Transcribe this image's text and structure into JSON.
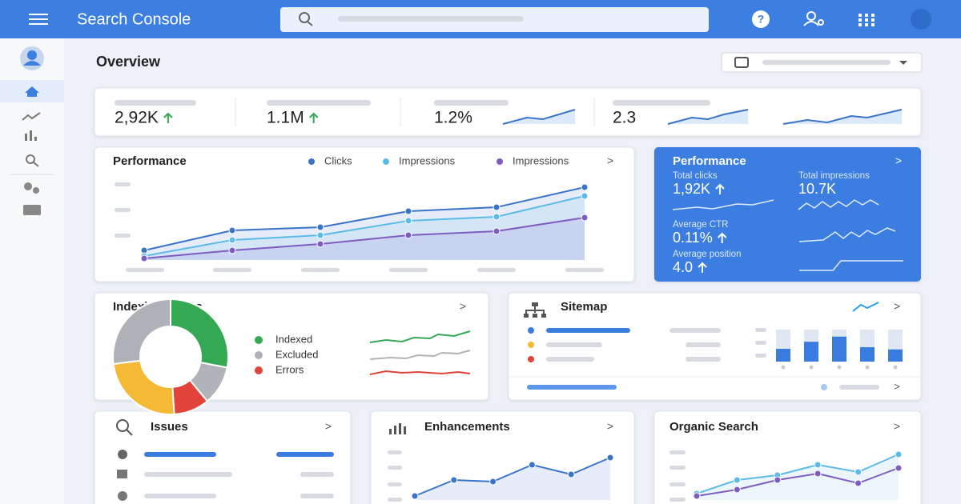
{
  "header": {
    "title": "Search Console"
  },
  "overview": {
    "title": "Overview",
    "metrics": [
      "2,92K",
      "1.1M",
      "1.2%",
      "2.3"
    ]
  },
  "performance": {
    "title": "Performance",
    "chart": {
      "type": "line",
      "ylim": [
        0,
        100
      ],
      "series": [
        {
          "name": "Clicks",
          "color": "#3a74c9",
          "values": [
            12,
            37,
            41,
            61,
            66,
            91
          ]
        },
        {
          "name": "Impressions",
          "color": "#5bbbe8",
          "values": [
            5,
            25,
            31,
            49,
            54,
            80
          ]
        },
        {
          "name": "Impressions",
          "color": "#7e5cc0",
          "values": [
            2,
            12,
            20,
            31,
            36,
            53
          ]
        }
      ]
    }
  },
  "summary": {
    "title": "Performance",
    "items": [
      {
        "label": "Total clicks",
        "value": "1,92K"
      },
      {
        "label": "Total impressions",
        "value": "10.7K"
      },
      {
        "label": "Average CTR",
        "value": "0.11%"
      },
      {
        "label": "Average position",
        "value": "4.0"
      }
    ]
  },
  "indexing": {
    "title": "Indexing Status",
    "chart": {
      "type": "pie",
      "segments": [
        {
          "color": "#34a853",
          "values": 28
        },
        {
          "color": "#b0b3b8",
          "values": 11
        },
        {
          "color": "#e0443a",
          "values": 10
        },
        {
          "color": "#f4b935",
          "values": 24
        },
        {
          "color": "#aeb1b6",
          "values": 27
        }
      ],
      "legend": [
        {
          "name": "Indexed",
          "color": "#34a853"
        },
        {
          "name": "Excluded",
          "color": "#aeb1b6"
        },
        {
          "name": "Errors",
          "color": "#e0443a"
        }
      ]
    }
  },
  "sitemap": {
    "title": "Sitemap",
    "chart": {
      "type": "bar",
      "ylim": [
        0,
        100
      ],
      "color": "#3a7be0",
      "values": [
        40,
        62,
        78,
        45,
        38
      ]
    }
  },
  "issues": {
    "title": "Issues"
  },
  "enhancements": {
    "title": "Enhancements",
    "chart": {
      "type": "line",
      "ylim": [
        0,
        70
      ],
      "series": [
        {
          "color": "#3a74c9",
          "values": [
            5,
            25,
            23,
            44,
            32,
            53
          ]
        }
      ]
    }
  },
  "organic": {
    "title": "Organic Search",
    "chart": {
      "type": "line",
      "ylim": [
        0,
        70
      ],
      "series": [
        {
          "color": "#5bbbe8",
          "values": [
            8,
            25,
            31,
            44,
            35,
            57
          ]
        },
        {
          "color": "#7e5cc0",
          "values": [
            5,
            13,
            25,
            33,
            21,
            40
          ]
        }
      ]
    }
  }
}
